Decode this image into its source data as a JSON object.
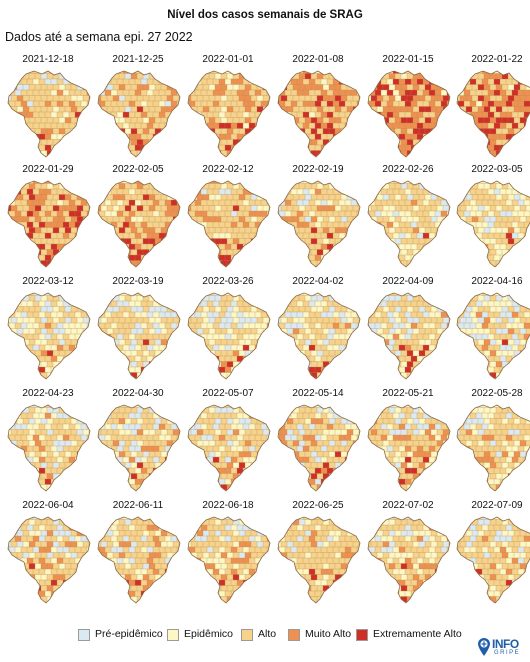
{
  "title": "Nível dos casos semanais de SRAG",
  "subtitle": "Dados até a semana epi. 27 2022",
  "colors": {
    "pre": "#dbeaf2",
    "epi": "#fdf7c4",
    "alto": "#f6d28b",
    "muito": "#ee9150",
    "extremo": "#cf2f27",
    "border": "#b08a5a"
  },
  "chart_data": {
    "type": "choropleth small multiples",
    "categories": [
      "Pré-epidêmico",
      "Epidêmico",
      "Alto",
      "Muito Alto",
      "Extremamente Alto"
    ],
    "weeks": [
      {
        "date": "2021-12-18",
        "distribution": [
          0.02,
          0.15,
          0.62,
          0.17,
          0.04
        ]
      },
      {
        "date": "2021-12-25",
        "distribution": [
          0.01,
          0.12,
          0.6,
          0.21,
          0.06
        ]
      },
      {
        "date": "2022-01-01",
        "distribution": [
          0.0,
          0.08,
          0.52,
          0.28,
          0.12
        ]
      },
      {
        "date": "2022-01-08",
        "distribution": [
          0.0,
          0.04,
          0.38,
          0.36,
          0.22
        ]
      },
      {
        "date": "2022-01-15",
        "distribution": [
          0.0,
          0.02,
          0.28,
          0.4,
          0.3
        ]
      },
      {
        "date": "2022-01-22",
        "distribution": [
          0.0,
          0.02,
          0.3,
          0.38,
          0.3
        ]
      },
      {
        "date": "2022-01-29",
        "distribution": [
          0.0,
          0.03,
          0.38,
          0.36,
          0.23
        ]
      },
      {
        "date": "2022-02-05",
        "distribution": [
          0.0,
          0.06,
          0.48,
          0.3,
          0.16
        ]
      },
      {
        "date": "2022-02-12",
        "distribution": [
          0.01,
          0.12,
          0.58,
          0.21,
          0.08
        ]
      },
      {
        "date": "2022-02-19",
        "distribution": [
          0.05,
          0.22,
          0.55,
          0.14,
          0.04
        ]
      },
      {
        "date": "2022-02-26",
        "distribution": [
          0.08,
          0.3,
          0.5,
          0.1,
          0.02
        ]
      },
      {
        "date": "2022-03-05",
        "distribution": [
          0.12,
          0.34,
          0.46,
          0.07,
          0.01
        ]
      },
      {
        "date": "2022-03-12",
        "distribution": [
          0.15,
          0.32,
          0.45,
          0.07,
          0.01
        ]
      },
      {
        "date": "2022-03-19",
        "distribution": [
          0.18,
          0.32,
          0.42,
          0.07,
          0.01
        ]
      },
      {
        "date": "2022-03-26",
        "distribution": [
          0.17,
          0.3,
          0.44,
          0.08,
          0.01
        ]
      },
      {
        "date": "2022-04-02",
        "distribution": [
          0.18,
          0.3,
          0.42,
          0.09,
          0.01
        ]
      },
      {
        "date": "2022-04-09",
        "distribution": [
          0.18,
          0.28,
          0.42,
          0.11,
          0.01
        ]
      },
      {
        "date": "2022-04-16",
        "distribution": [
          0.2,
          0.26,
          0.4,
          0.12,
          0.02
        ]
      },
      {
        "date": "2022-04-23",
        "distribution": [
          0.2,
          0.24,
          0.4,
          0.14,
          0.02
        ]
      },
      {
        "date": "2022-04-30",
        "distribution": [
          0.18,
          0.24,
          0.4,
          0.16,
          0.02
        ]
      },
      {
        "date": "2022-05-07",
        "distribution": [
          0.16,
          0.24,
          0.42,
          0.16,
          0.02
        ]
      },
      {
        "date": "2022-05-14",
        "distribution": [
          0.14,
          0.22,
          0.44,
          0.18,
          0.02
        ]
      },
      {
        "date": "2022-05-21",
        "distribution": [
          0.12,
          0.2,
          0.46,
          0.2,
          0.02
        ]
      },
      {
        "date": "2022-05-28",
        "distribution": [
          0.1,
          0.2,
          0.48,
          0.2,
          0.02
        ]
      },
      {
        "date": "2022-06-04",
        "distribution": [
          0.1,
          0.2,
          0.48,
          0.2,
          0.02
        ]
      },
      {
        "date": "2022-06-11",
        "distribution": [
          0.09,
          0.2,
          0.49,
          0.2,
          0.02
        ]
      },
      {
        "date": "2022-06-18",
        "distribution": [
          0.07,
          0.2,
          0.52,
          0.19,
          0.02
        ]
      },
      {
        "date": "2022-06-25",
        "distribution": [
          0.05,
          0.2,
          0.55,
          0.18,
          0.02
        ]
      },
      {
        "date": "2022-07-02",
        "distribution": [
          0.06,
          0.22,
          0.54,
          0.16,
          0.02
        ]
      },
      {
        "date": "2022-07-09",
        "distribution": [
          0.07,
          0.24,
          0.52,
          0.15,
          0.02
        ]
      }
    ]
  },
  "legend": [
    {
      "label": "Pré-epidêmico",
      "color_key": "pre"
    },
    {
      "label": "Epidêmico",
      "color_key": "epi"
    },
    {
      "label": "Alto",
      "color_key": "alto"
    },
    {
      "label": "Muito Alto",
      "color_key": "muito"
    },
    {
      "label": "Extremamente Alto",
      "color_key": "extremo"
    }
  ],
  "logo": {
    "line1": "INFO",
    "line2": "GRIPE",
    "icon": "map-pin-icon"
  }
}
